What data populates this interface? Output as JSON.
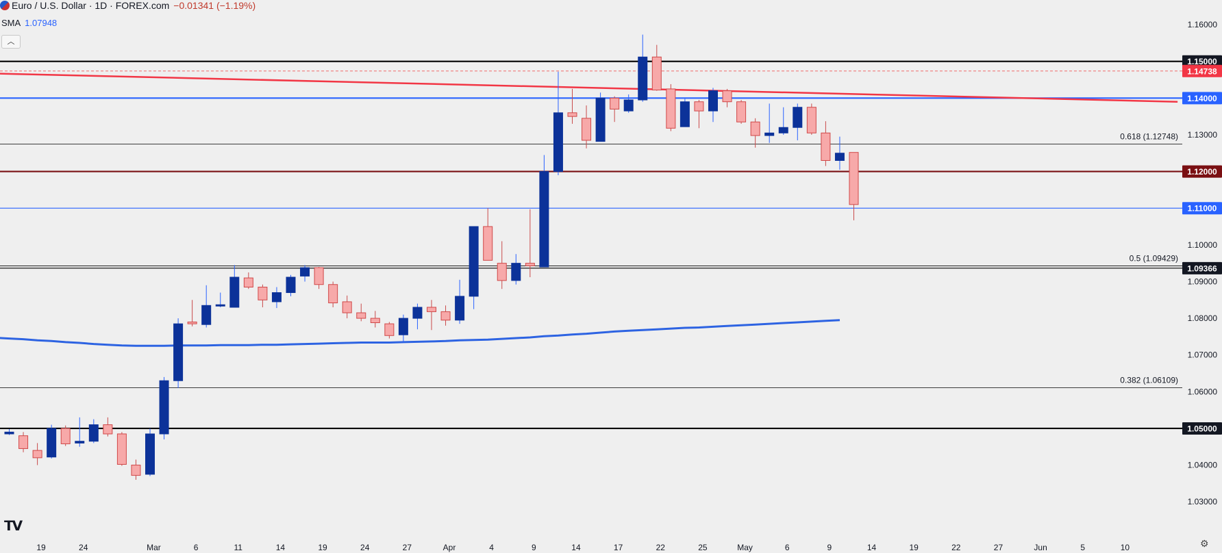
{
  "header": {
    "symbol": "Euro / U.S. Dollar · 1D · FOREX.com",
    "change": "−0.01341 (−1.19%)",
    "indicator_name": "SMA",
    "indicator_value": "1.07948",
    "collapse_icon": "chevron-up-icon"
  },
  "chart_data": {
    "type": "candlestick",
    "ylim": [
      1.025,
      1.163
    ],
    "y_ticks": [
      "1.16000",
      "1.13000",
      "1.10000",
      "1.09000",
      "1.08000",
      "1.07000",
      "1.06000",
      "1.04000",
      "1.03000"
    ],
    "x_ticks": [
      {
        "label": "19",
        "i": 1
      },
      {
        "label": "24",
        "i": 4
      },
      {
        "label": "Mar",
        "i": 9
      },
      {
        "label": "6",
        "i": 12
      },
      {
        "label": "11",
        "i": 15
      },
      {
        "label": "14",
        "i": 18
      },
      {
        "label": "19",
        "i": 21
      },
      {
        "label": "24",
        "i": 24
      },
      {
        "label": "27",
        "i": 27
      },
      {
        "label": "Apr",
        "i": 30
      },
      {
        "label": "4",
        "i": 33
      },
      {
        "label": "9",
        "i": 36
      },
      {
        "label": "14",
        "i": 39
      },
      {
        "label": "17",
        "i": 42
      },
      {
        "label": "22",
        "i": 45
      },
      {
        "label": "25",
        "i": 48
      },
      {
        "label": "May",
        "i": 51
      },
      {
        "label": "6",
        "i": 54
      },
      {
        "label": "9",
        "i": 57
      },
      {
        "label": "14",
        "i": 60
      },
      {
        "label": "19",
        "i": 63
      },
      {
        "label": "22",
        "i": 66
      },
      {
        "label": "27",
        "i": 69
      },
      {
        "label": "Jun",
        "i": 72
      },
      {
        "label": "5",
        "i": 75
      },
      {
        "label": "10",
        "i": 78
      }
    ],
    "candles": [
      [
        1.0485,
        1.0498,
        1.0482,
        1.049
      ],
      [
        1.048,
        1.049,
        1.0435,
        1.0445
      ],
      [
        1.044,
        1.046,
        1.04,
        1.042
      ],
      [
        1.0422,
        1.051,
        1.0418,
        1.05
      ],
      [
        1.05,
        1.0508,
        1.0452,
        1.0458
      ],
      [
        1.046,
        1.053,
        1.045,
        1.0465
      ],
      [
        1.0465,
        1.0525,
        1.046,
        1.051
      ],
      [
        1.051,
        1.053,
        1.0478,
        1.0485
      ],
      [
        1.0485,
        1.049,
        1.0398,
        1.0402
      ],
      [
        1.04,
        1.0415,
        1.036,
        1.0372
      ],
      [
        1.0375,
        1.05,
        1.037,
        1.0485
      ],
      [
        1.0485,
        1.064,
        1.047,
        1.063
      ],
      [
        1.063,
        1.08,
        1.061,
        1.0785
      ],
      [
        1.079,
        1.085,
        1.0778,
        1.0785
      ],
      [
        1.0783,
        1.089,
        1.0775,
        1.0835
      ],
      [
        1.0835,
        1.087,
        1.083,
        1.0837
      ],
      [
        1.083,
        1.0945,
        1.083,
        1.0912
      ],
      [
        1.091,
        1.0925,
        1.088,
        1.0885
      ],
      [
        1.0885,
        1.0892,
        1.083,
        1.085
      ],
      [
        1.0845,
        1.0885,
        1.0828,
        1.087
      ],
      [
        1.087,
        1.0918,
        1.086,
        1.0912
      ],
      [
        1.0915,
        1.0945,
        1.09,
        1.0938
      ],
      [
        1.0938,
        1.094,
        1.088,
        1.0892
      ],
      [
        1.0892,
        1.09,
        1.083,
        1.0842
      ],
      [
        1.0845,
        1.0862,
        1.08,
        1.0815
      ],
      [
        1.0815,
        1.084,
        1.0792,
        1.08
      ],
      [
        1.08,
        1.082,
        1.0775,
        1.0788
      ],
      [
        1.0785,
        1.079,
        1.0745,
        1.0753
      ],
      [
        1.0755,
        1.081,
        1.0735,
        1.08
      ],
      [
        1.08,
        1.084,
        1.077,
        1.083
      ],
      [
        1.083,
        1.085,
        1.0768,
        1.0818
      ],
      [
        1.0818,
        1.0835,
        1.078,
        1.0795
      ],
      [
        1.0795,
        1.0905,
        1.0785,
        1.086
      ],
      [
        1.086,
        1.105,
        1.0825,
        1.105
      ],
      [
        1.105,
        1.11,
        1.0965,
        1.0958
      ],
      [
        1.095,
        1.101,
        1.088,
        1.0903
      ],
      [
        1.0903,
        1.0975,
        1.0892,
        1.095
      ],
      [
        1.095,
        1.1097,
        1.0912,
        1.0943
      ],
      [
        1.094,
        1.1245,
        1.094,
        1.12
      ],
      [
        1.12,
        1.1472,
        1.119,
        1.136
      ],
      [
        1.136,
        1.1425,
        1.133,
        1.135
      ],
      [
        1.1345,
        1.138,
        1.1263,
        1.1285
      ],
      [
        1.1282,
        1.1415,
        1.1282,
        1.14
      ],
      [
        1.14,
        1.1405,
        1.1335,
        1.137
      ],
      [
        1.1365,
        1.141,
        1.136,
        1.1395
      ],
      [
        1.1395,
        1.1573,
        1.139,
        1.1512
      ],
      [
        1.1512,
        1.1545,
        1.142,
        1.1422
      ],
      [
        1.1425,
        1.1438,
        1.131,
        1.1318
      ],
      [
        1.1322,
        1.1398,
        1.1322,
        1.139
      ],
      [
        1.139,
        1.1395,
        1.1318,
        1.1365
      ],
      [
        1.1365,
        1.1428,
        1.1335,
        1.142
      ],
      [
        1.142,
        1.1425,
        1.1375,
        1.139
      ],
      [
        1.139,
        1.1395,
        1.133,
        1.1335
      ],
      [
        1.1335,
        1.1345,
        1.1265,
        1.1298
      ],
      [
        1.1298,
        1.1385,
        1.1278,
        1.1305
      ],
      [
        1.1305,
        1.1375,
        1.13,
        1.132
      ],
      [
        1.132,
        1.1385,
        1.1285,
        1.1375
      ],
      [
        1.1375,
        1.1385,
        1.13,
        1.1305
      ],
      [
        1.1305,
        1.1337,
        1.1215,
        1.123
      ],
      [
        1.123,
        1.1295,
        1.1205,
        1.125
      ],
      [
        1.1252,
        1.1252,
        1.1067,
        1.111
      ]
    ],
    "sma": [
      1.0747,
      1.0745,
      1.0743,
      1.074,
      1.0738,
      1.0735,
      1.0733,
      1.073,
      1.0728,
      1.0726,
      1.0725,
      1.0725,
      1.0725,
      1.0726,
      1.0726,
      1.0726,
      1.0727,
      1.0727,
      1.0727,
      1.0728,
      1.0728,
      1.0729,
      1.073,
      1.0731,
      1.0732,
      1.0733,
      1.0734,
      1.0734,
      1.0734,
      1.0735,
      1.0736,
      1.0737,
      1.0738,
      1.074,
      1.0741,
      1.0742,
      1.0744,
      1.0746,
      1.0748,
      1.0751,
      1.0753,
      1.0756,
      1.0758,
      1.0761,
      1.0764,
      1.0766,
      1.0768,
      1.077,
      1.0772,
      1.0774,
      1.0775,
      1.0777,
      1.0779,
      1.0781,
      1.0783,
      1.0785,
      1.0787,
      1.0789,
      1.0791,
      1.0793,
      1.0795
    ],
    "hlines": [
      {
        "value": 1.15,
        "label": "1.15000",
        "color": "#000000",
        "width": 2.2,
        "tag_bg": "#131722",
        "tag_fg": "#ffffff"
      },
      {
        "value": 1.14738,
        "label": "1.14738",
        "color": "#f06a6a",
        "width": 1,
        "dash": "4,3",
        "tag_bg": "#f23645",
        "tag_fg": "#ffffff"
      },
      {
        "value": 1.14,
        "label": "1.14000",
        "color": "#2962ff",
        "width": 2.2,
        "tag_bg": "#2962ff",
        "tag_fg": "#ffffff"
      },
      {
        "value": 1.12748,
        "label": "",
        "color": "#000000",
        "width": 0.8
      },
      {
        "value": 1.12,
        "label": "1.12000",
        "color": "#7a0f12",
        "width": 2.2,
        "tag_bg": "#7a0f12",
        "tag_fg": "#ffffff"
      },
      {
        "value": 1.11,
        "label": "1.11000",
        "color": "#2962ff",
        "width": 1.2,
        "tag_bg": "#2962ff",
        "tag_fg": "#ffffff"
      },
      {
        "value": 1.09429,
        "label": "",
        "color": "#000000",
        "width": 0.8
      },
      {
        "value": 1.09366,
        "label": "1.09366",
        "color": "#000000",
        "width": 1.2,
        "tag_bg": "#131722",
        "tag_fg": "#ffffff"
      },
      {
        "value": 1.06109,
        "label": "",
        "color": "#000000",
        "width": 0.8
      },
      {
        "value": 1.05,
        "label": "1.05000",
        "color": "#000000",
        "width": 2.2,
        "tag_bg": "#131722",
        "tag_fg": "#ffffff"
      }
    ],
    "fib_labels": [
      {
        "value": 1.12748,
        "text": "0.618 (1.12748)"
      },
      {
        "value": 1.09429,
        "text": "0.5 (1.09429)"
      },
      {
        "value": 1.06109,
        "text": "0.382 (1.06109)"
      }
    ],
    "trendline": {
      "from": {
        "i": -1,
        "value": 1.1467
      },
      "to": {
        "i": 83,
        "value": 1.139
      },
      "color": "#f23645"
    },
    "colors": {
      "up": "#0c3299",
      "down": "#f7a9a9",
      "down_border": "#d04848",
      "sma": "#2d63e2"
    }
  },
  "footer": {
    "logo": "17",
    "settings_icon": "gear-icon"
  }
}
